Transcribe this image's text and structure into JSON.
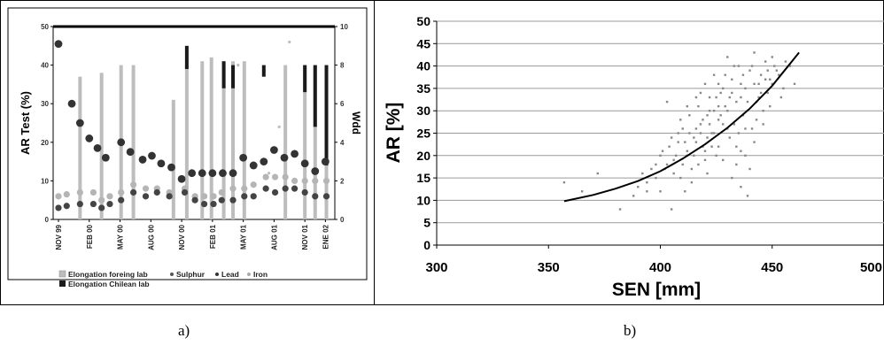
{
  "captions": {
    "a": "a)",
    "b": "b)"
  },
  "chart_data": [
    {
      "type": "bar",
      "panel": "a",
      "ylabel": "AR Test (%)",
      "y2label": "Wdd",
      "ylim": [
        0,
        50
      ],
      "y2lim": [
        0,
        10
      ],
      "yticks": [
        "0",
        "10",
        "20",
        "30",
        "40",
        "50"
      ],
      "y2ticks": [
        "0",
        "2",
        "4",
        "6",
        "8",
        "10"
      ],
      "xticks": [
        {
          "label": "NOV 99",
          "t": 0
        },
        {
          "label": "FEB 00",
          "t": 3
        },
        {
          "label": "MAY 00",
          "t": 6
        },
        {
          "label": "AUG 00",
          "t": 9
        },
        {
          "label": "NOV 00",
          "t": 12
        },
        {
          "label": "FEB 01",
          "t": 15
        },
        {
          "label": "MAY 01",
          "t": 18
        },
        {
          "label": "AUG 01",
          "t": 21
        },
        {
          "label": "NOV 01",
          "t": 24
        },
        {
          "label": "ENE 02",
          "t": 26
        }
      ],
      "grid": false,
      "legend_position": "bottom",
      "colors": {
        "foreign_bar": "#bdbdbd",
        "chilean_bar": "#1a1a1a",
        "sulphur": "#444444",
        "lead": "#444444",
        "iron": "#bdbdbd",
        "wdd": "#333333"
      },
      "series": [
        {
          "name": "Elongation foreing lab",
          "kind": "bar",
          "x": [
            2.1,
            4.2,
            6.1,
            7.3,
            11.2,
            12.5,
            14.0,
            14.9,
            16.1,
            17.0,
            18.1,
            22.1,
            24.0,
            25.0,
            26.1
          ],
          "values": [
            37,
            38,
            40,
            40,
            31,
            40,
            41,
            42,
            41,
            41,
            41,
            40,
            40,
            40,
            40
          ]
        },
        {
          "name": "Elongation Chilean lab",
          "kind": "bar",
          "x": [
            12.5,
            16.1,
            17.0,
            20.0,
            24.0,
            25.0,
            26.1
          ],
          "values": [
            45,
            41,
            40,
            40,
            40,
            40,
            40
          ],
          "base": [
            39,
            34,
            34,
            37,
            33,
            24,
            14
          ]
        },
        {
          "name": "Sulphur",
          "kind": "marker",
          "x": [
            0.0,
            0.8,
            2.1,
            3.4,
            4.2,
            5.0,
            6.1,
            7.3,
            8.5,
            9.6,
            10.8,
            12.3,
            13.3,
            14.2,
            15.1,
            15.9,
            17.0,
            18.1,
            19.0,
            20.2,
            21.1,
            22.1,
            23.0,
            24.0,
            25.0,
            26.1
          ],
          "values": [
            3,
            3.5,
            4,
            4,
            3,
            4,
            5,
            7,
            6,
            7,
            6,
            7,
            5,
            4,
            4,
            5,
            5,
            6,
            6,
            8,
            7,
            8,
            8,
            7,
            6,
            6
          ]
        },
        {
          "name": "Lead",
          "kind": "marker",
          "x": [
            0.0,
            0.8,
            2.1,
            3.4,
            4.2,
            5.0,
            6.1,
            7.3,
            8.5,
            9.6,
            10.8,
            12.3,
            13.3,
            14.2,
            15.1,
            15.9,
            17.0,
            18.1,
            19.0,
            20.2,
            21.1,
            22.1,
            23.0,
            24.0,
            25.0,
            26.1
          ],
          "values": [
            6,
            6.5,
            7,
            7,
            5,
            6,
            7,
            9,
            8,
            8,
            7,
            8,
            6,
            6,
            6,
            7,
            8,
            8,
            9,
            11,
            11,
            11,
            10,
            10,
            10,
            10
          ]
        },
        {
          "name": "Iron",
          "kind": "marker",
          "x": [
            17.5,
            20.5,
            21.5,
            22.5
          ],
          "values": [
            40,
            12,
            24,
            46
          ]
        },
        {
          "name": "Wdd",
          "kind": "dots",
          "axis": "y2",
          "x": [
            0.0,
            1.3,
            2.1,
            3.0,
            3.8,
            4.6,
            6.1,
            7.0,
            8.2,
            9.1,
            10.0,
            11.0,
            12.0,
            13.0,
            14.0,
            15.0,
            16.0,
            17.0,
            18.0,
            19.0,
            20.0,
            21.0,
            22.0,
            23.0,
            24.0,
            25.0,
            26.0
          ],
          "values": [
            9.1,
            6.0,
            5.0,
            4.2,
            3.7,
            3.2,
            4.0,
            3.5,
            3.1,
            3.3,
            2.9,
            2.7,
            2.1,
            2.4,
            2.4,
            2.4,
            2.4,
            2.4,
            3.2,
            2.8,
            3.0,
            3.6,
            3.2,
            3.4,
            2.9,
            2.5,
            3.0
          ]
        }
      ]
    },
    {
      "type": "scatter",
      "panel": "b",
      "xlabel": "SEN [mm]",
      "ylabel": "AR [%]",
      "xlim": [
        300,
        500
      ],
      "ylim": [
        0,
        50
      ],
      "xticks": [
        300,
        350,
        400,
        450,
        500
      ],
      "yticks": [
        0,
        5,
        10,
        15,
        20,
        25,
        30,
        35,
        40,
        45,
        50
      ],
      "grid": true,
      "point_color": "#888888",
      "curve_color": "#000000",
      "trend_curve": {
        "x": [
          357,
          370,
          380,
          390,
          400,
          410,
          420,
          430,
          440,
          450,
          462
        ],
        "y": [
          9.8,
          11.2,
          12.6,
          14.3,
          16.5,
          19.3,
          22.5,
          26.2,
          30.5,
          35.6,
          43.0
        ]
      },
      "points": [
        [
          357,
          14
        ],
        [
          365,
          12
        ],
        [
          372,
          16
        ],
        [
          382,
          8
        ],
        [
          388,
          11
        ],
        [
          394,
          14
        ],
        [
          398,
          15
        ],
        [
          400,
          12
        ],
        [
          402,
          17
        ],
        [
          403,
          32
        ],
        [
          405,
          8
        ],
        [
          406,
          19
        ],
        [
          408,
          23
        ],
        [
          409,
          15
        ],
        [
          410,
          26
        ],
        [
          411,
          12
        ],
        [
          412,
          21
        ],
        [
          413,
          29
        ],
        [
          414,
          14
        ],
        [
          415,
          24
        ],
        [
          416,
          33
        ],
        [
          417,
          18
        ],
        [
          418,
          27
        ],
        [
          419,
          22
        ],
        [
          420,
          36
        ],
        [
          421,
          16
        ],
        [
          422,
          30
        ],
        [
          423,
          25
        ],
        [
          424,
          38
        ],
        [
          425,
          20
        ],
        [
          426,
          28
        ],
        [
          427,
          34
        ],
        [
          428,
          19
        ],
        [
          429,
          31
        ],
        [
          430,
          42
        ],
        [
          431,
          24
        ],
        [
          432,
          37
        ],
        [
          433,
          27
        ],
        [
          434,
          22
        ],
        [
          435,
          40
        ],
        [
          436,
          33
        ],
        [
          437,
          29
        ],
        [
          438,
          35
        ],
        [
          439,
          11
        ],
        [
          440,
          39
        ],
        [
          441,
          26
        ],
        [
          442,
          43
        ],
        [
          443,
          32
        ],
        [
          444,
          36
        ],
        [
          445,
          38
        ],
        [
          446,
          30
        ],
        [
          447,
          41
        ],
        [
          448,
          34
        ],
        [
          449,
          37
        ],
        [
          450,
          42
        ],
        [
          452,
          39
        ],
        [
          455,
          35
        ],
        [
          458,
          40
        ],
        [
          460,
          36
        ],
        [
          432,
          15
        ],
        [
          434,
          18
        ],
        [
          436,
          13
        ],
        [
          438,
          20
        ],
        [
          426,
          22
        ],
        [
          424,
          30
        ],
        [
          428,
          35
        ],
        [
          430,
          26
        ],
        [
          421,
          24
        ],
        [
          419,
          28
        ],
        [
          417,
          31
        ],
        [
          415,
          20
        ],
        [
          413,
          25
        ],
        [
          411,
          23
        ],
        [
          407,
          20
        ],
        [
          405,
          24
        ],
        [
          403,
          18
        ],
        [
          401,
          21
        ],
        [
          409,
          28
        ],
        [
          416,
          26
        ],
        [
          418,
          34
        ],
        [
          420,
          19
        ],
        [
          422,
          27
        ],
        [
          425,
          33
        ],
        [
          427,
          29
        ],
        [
          429,
          38
        ],
        [
          431,
          33
        ],
        [
          433,
          40
        ],
        [
          435,
          25
        ],
        [
          437,
          38
        ],
        [
          439,
          32
        ],
        [
          441,
          40
        ],
        [
          443,
          28
        ],
        [
          445,
          34
        ],
        [
          447,
          37
        ],
        [
          449,
          31
        ],
        [
          451,
          40
        ],
        [
          453,
          38
        ],
        [
          440,
          17
        ],
        [
          442,
          23
        ],
        [
          436,
          21
        ],
        [
          430,
          30
        ],
        [
          426,
          36
        ],
        [
          424,
          25
        ],
        [
          420,
          21
        ],
        [
          414,
          17
        ],
        [
          410,
          18
        ],
        [
          406,
          16
        ],
        [
          396,
          17
        ],
        [
          392,
          16
        ],
        [
          412,
          31
        ],
        [
          418,
          25
        ],
        [
          422,
          33
        ],
        [
          428,
          27
        ],
        [
          434,
          32
        ],
        [
          438,
          26
        ],
        [
          444,
          33
        ],
        [
          446,
          27
        ],
        [
          450,
          36
        ],
        [
          454,
          33
        ],
        [
          456,
          41
        ],
        [
          448,
          39
        ],
        [
          442,
          36
        ],
        [
          436,
          36
        ],
        [
          432,
          34
        ],
        [
          426,
          31
        ],
        [
          423,
          22
        ],
        [
          421,
          29
        ],
        [
          416,
          23
        ],
        [
          412,
          20
        ],
        [
          408,
          25
        ],
        [
          404,
          22
        ],
        [
          400,
          20
        ],
        [
          398,
          18
        ],
        [
          394,
          12
        ],
        [
          390,
          13
        ]
      ]
    }
  ],
  "legend_a": {
    "foreign": "Elongation foreing lab",
    "sulphur": "Sulphur",
    "lead": "Lead",
    "iron": "Iron",
    "chilean": "Elongation Chilean lab"
  }
}
